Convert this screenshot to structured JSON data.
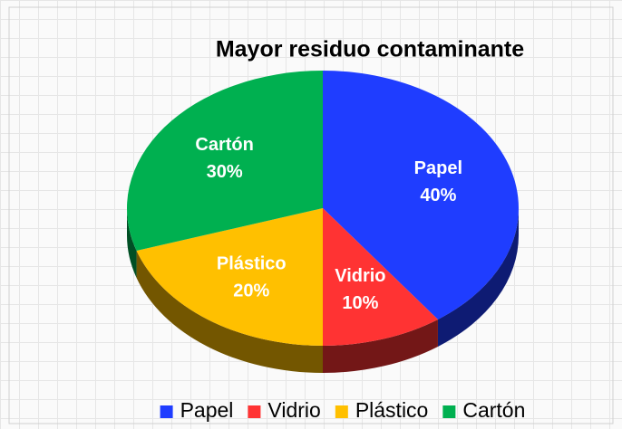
{
  "chart_data": {
    "type": "pie3d",
    "title": "Mayor residuo contaminante",
    "categories": [
      "Papel",
      "Vidrio",
      "Plástico",
      "Cartón"
    ],
    "values": [
      40,
      10,
      20,
      30
    ],
    "value_labels": [
      "40%",
      "10%",
      "20%",
      "30%"
    ],
    "colors": [
      "#1f3dff",
      "#ff3333",
      "#ffc000",
      "#00b050"
    ],
    "legend": "bottom"
  }
}
